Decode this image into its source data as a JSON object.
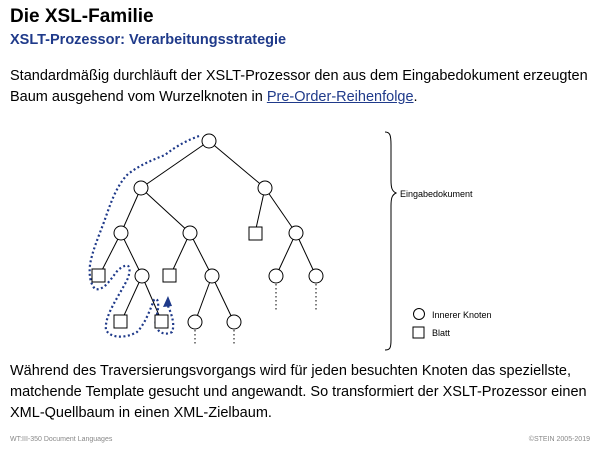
{
  "header": {
    "title": "Die XSL-Familie",
    "subtitle": "XSLT-Prozessor: Verarbeitungsstrategie"
  },
  "intro": {
    "text_before": "Standardmäßig durchläuft der XSLT-Prozessor den aus dem Eingabedokument erzeugten Baum ausgehend vom Wurzelknoten in ",
    "link": "Pre-Order-Reihenfolge",
    "text_after": "."
  },
  "diagram": {
    "brace_label": "Eingabedokument",
    "legend": {
      "inner_node": "Innerer Knoten",
      "leaf": "Blatt"
    },
    "colors": {
      "traversal": "#1f3a8a"
    }
  },
  "outro": {
    "text": "Während des Traversierungsvorgangs wird für jeden besuchten Knoten das speziellste, matchende Template gesucht und angewandt. So transformiert der XSLT-Prozessor einen XML-Quellbaum in einen XML-Zielbaum."
  },
  "footer": {
    "left": "WT:III-350    Document Languages",
    "right": "©STEIN 2005-2019"
  }
}
